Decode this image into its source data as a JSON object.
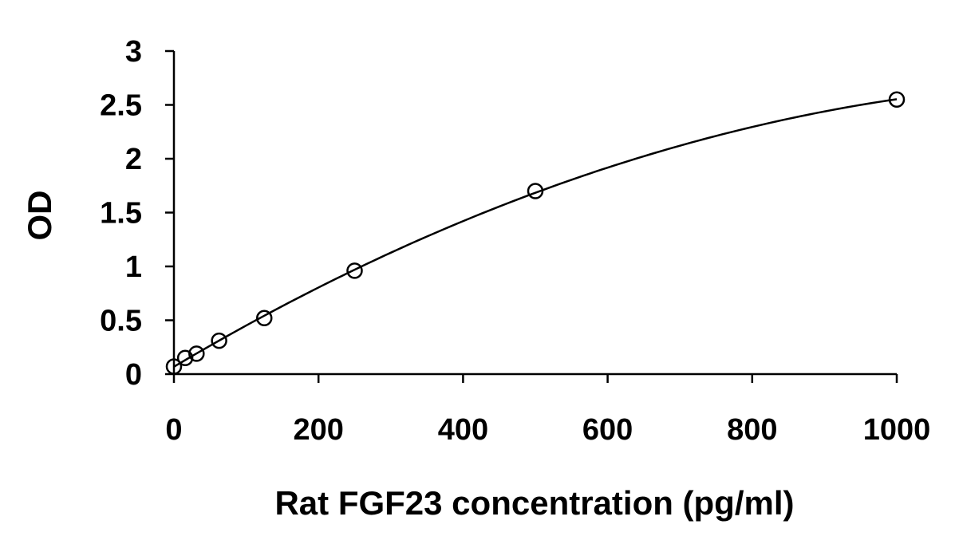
{
  "chart_data": {
    "type": "scatter",
    "title": "",
    "xlabel": "Rat FGF23 concentration (pg/ml)",
    "ylabel": "OD",
    "xlim": [
      0,
      1000
    ],
    "ylim": [
      0,
      3
    ],
    "x_ticks": [
      0,
      200,
      400,
      600,
      800,
      1000
    ],
    "x_tick_labels": [
      "0",
      "200",
      "400",
      "600",
      "800",
      "1000"
    ],
    "y_ticks": [
      0,
      0.5,
      1,
      1.5,
      2,
      2.5,
      3
    ],
    "y_tick_labels": [
      "0",
      "0.5",
      "1",
      "1.5",
      "2",
      "2.5",
      "3"
    ],
    "grid": false,
    "legend": "none",
    "series": [
      {
        "marker": "open-circle",
        "trendline": "smooth-fit",
        "x": [
          0,
          15.6,
          31.25,
          62.5,
          125,
          250,
          500,
          1000
        ],
        "y": [
          0.07,
          0.15,
          0.19,
          0.31,
          0.52,
          0.96,
          1.7,
          2.55
        ]
      }
    ]
  }
}
